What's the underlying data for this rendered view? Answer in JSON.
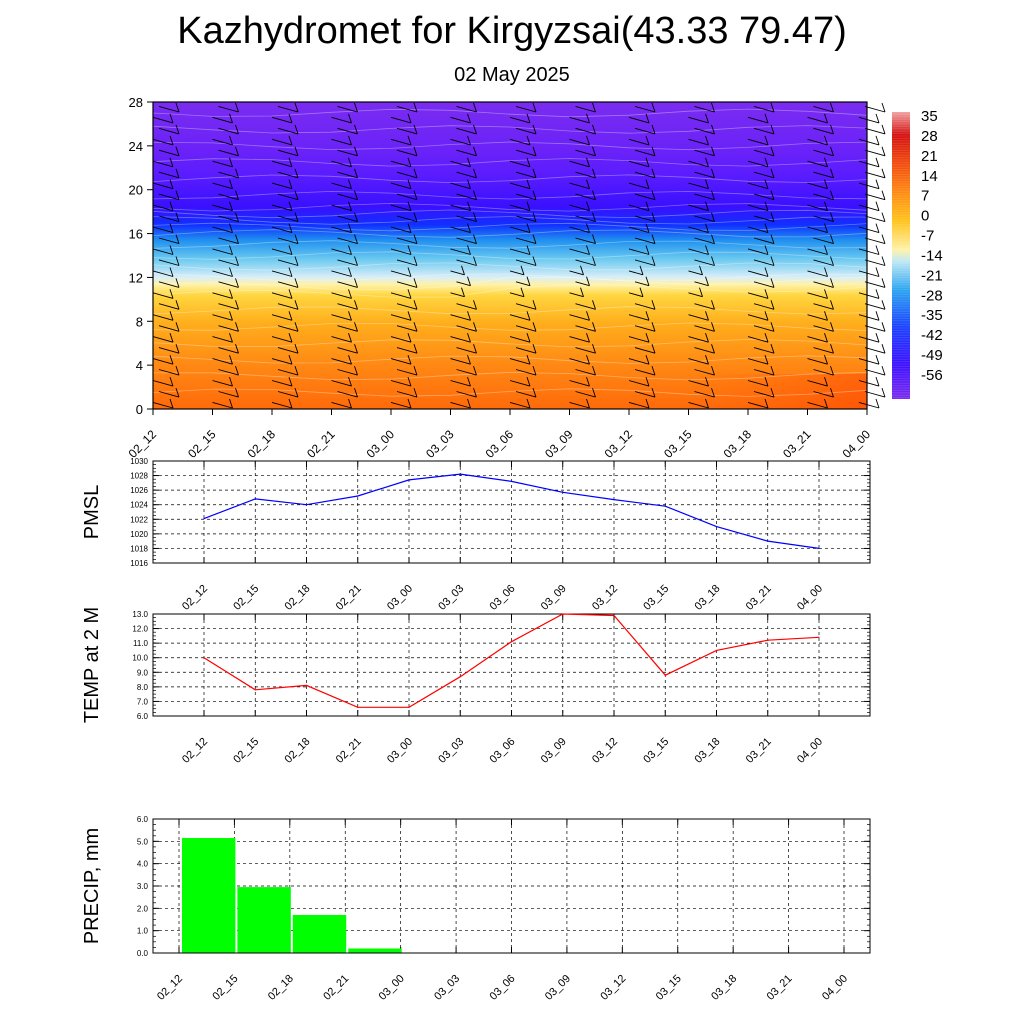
{
  "header": {
    "title": "Kazhydromet for Kirgyzsai(43.33 79.47)",
    "subtitle": "02 May 2025"
  },
  "time_labels": [
    "02_12",
    "02_15",
    "02_18",
    "02_21",
    "03_00",
    "03_03",
    "03_06",
    "03_09",
    "03_12",
    "03_15",
    "03_18",
    "03_21",
    "04_00"
  ],
  "colors": {
    "pmsl_line": "#0000ff",
    "temp_line": "#ff0000",
    "precip_bar": "#00ff00",
    "grid": "#000000"
  },
  "chart_data": [
    {
      "type": "heatmap",
      "title": "",
      "ylim": [
        0,
        28
      ],
      "yticks": [
        0,
        4,
        8,
        12,
        16,
        20,
        24,
        28
      ],
      "categories": [
        "02_12",
        "02_15",
        "02_18",
        "02_21",
        "03_00",
        "03_03",
        "03_06",
        "03_09",
        "03_12",
        "03_15",
        "03_18",
        "03_21",
        "04_00"
      ],
      "colorbar": {
        "labels": [
          "35",
          "28",
          "21",
          "14",
          "7",
          "0",
          "-7",
          "-14",
          "-21",
          "-28",
          "-35",
          "-42",
          "-49",
          "-56"
        ],
        "range": [
          -60,
          38
        ]
      },
      "wind_barbs": true
    },
    {
      "type": "line",
      "ylabel": "PMSL",
      "ylim": [
        1016,
        1030
      ],
      "yticks": [
        "1016",
        "1018",
        "1020",
        "1022",
        "1024",
        "1026",
        "1028",
        "1030"
      ],
      "categories": [
        "02_12",
        "02_15",
        "02_18",
        "02_21",
        "03_00",
        "03_03",
        "03_06",
        "03_09",
        "03_12",
        "03_15",
        "03_18",
        "03_21",
        "04_00"
      ],
      "values": [
        1022.1,
        1024.8,
        1024.0,
        1025.2,
        1027.4,
        1028.2,
        1027.2,
        1025.7,
        1024.7,
        1023.8,
        1021.0,
        1019.0,
        1018.0
      ],
      "grid": true
    },
    {
      "type": "line",
      "ylabel": "TEMP at 2 M",
      "ylim": [
        6.0,
        13.0
      ],
      "yticks": [
        "6.0",
        "7.0",
        "8.0",
        "9.0",
        "10.0",
        "11.0",
        "12.0",
        "13.0"
      ],
      "categories": [
        "02_12",
        "02_15",
        "02_18",
        "02_21",
        "03_00",
        "03_03",
        "03_06",
        "03_09",
        "03_12",
        "03_15",
        "03_18",
        "03_21",
        "04_00"
      ],
      "values": [
        10.0,
        7.8,
        8.1,
        6.6,
        6.6,
        8.7,
        11.1,
        13.0,
        12.9,
        8.8,
        10.5,
        11.2,
        11.4
      ],
      "grid": true
    },
    {
      "type": "bar",
      "ylabel": "PRECIP, mm",
      "ylim": [
        0,
        6.0
      ],
      "yticks": [
        "0.0",
        "1.0",
        "2.0",
        "3.0",
        "4.0",
        "5.0",
        "6.0"
      ],
      "categories": [
        "02_12",
        "02_15",
        "02_18",
        "02_21",
        "03_00",
        "03_03",
        "03_06",
        "03_09",
        "03_12",
        "03_15",
        "03_18",
        "03_21",
        "04_00"
      ],
      "values": [
        0,
        5.15,
        2.95,
        1.7,
        0.2,
        0,
        0,
        0,
        0,
        0,
        0,
        0,
        0
      ],
      "grid": true
    }
  ]
}
